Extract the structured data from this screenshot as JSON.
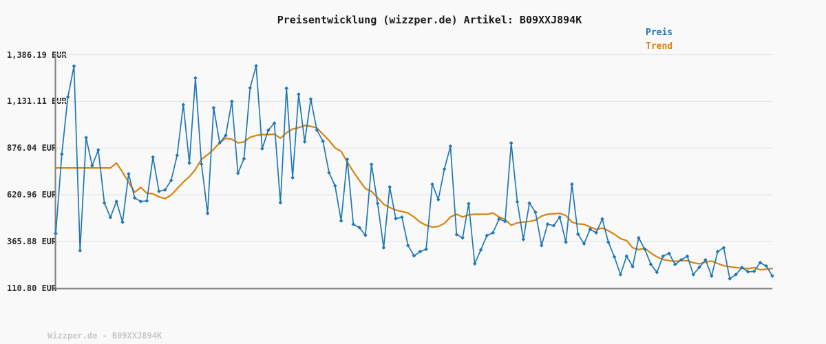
{
  "title": "Preisentwicklung (wizzper.de) Artikel: B09XXJ894K",
  "footer": "Wizzper.de - B09XXJ894K",
  "legend": {
    "preis_label": "Preis",
    "trend_label": "Trend"
  },
  "colors": {
    "price": "#1f77b4",
    "trend": "#d9820f",
    "grid": "#e6e6e6",
    "axis": "#808080",
    "title_text": "#1a1a1a",
    "tick_text": "#2b2b2b",
    "footer_text": "#c9c9c9",
    "background": "#f9f9f9"
  },
  "chart_data": {
    "type": "line",
    "title": "Preisentwicklung (wizzper.de) Artikel: B09XXJ894K",
    "xlabel": "",
    "ylabel": "EUR",
    "ylim": [
      110.8,
      1386.19
    ],
    "grid": "horizontal",
    "legend_position": "top-right",
    "y_ticks": [
      {
        "label": "1,386.19 EUR",
        "value": 1386.19
      },
      {
        "label": "1,131.11 EUR",
        "value": 1131.11
      },
      {
        "label": "876.04 EUR",
        "value": 876.04
      },
      {
        "label": "620.96 EUR",
        "value": 620.96
      },
      {
        "label": "365.88 EUR",
        "value": 365.88
      },
      {
        "label": "110.80 EUR",
        "value": 110.8
      }
    ],
    "series": [
      {
        "name": "Preis",
        "color": "#1f77b4",
        "marker": "diamond",
        "values": [
          410,
          843,
          1155,
          1324,
          317,
          933,
          780,
          866,
          577,
          498,
          585,
          472,
          735,
          604,
          585,
          588,
          827,
          640,
          648,
          700,
          837,
          1113,
          795,
          1259,
          789,
          520,
          1096,
          905,
          946,
          1131,
          739,
          818,
          1205,
          1325,
          873,
          974,
          1012,
          578,
          1203,
          715,
          1170,
          911,
          1144,
          975,
          914,
          742,
          670,
          479,
          815,
          460,
          442,
          400,
          787,
          574,
          332,
          664,
          491,
          499,
          345,
          288,
          311,
          324,
          679,
          595,
          762,
          886,
          404,
          386,
          573,
          245,
          320,
          399,
          414,
          489,
          476,
          904,
          583,
          378,
          576,
          526,
          345,
          461,
          453,
          499,
          363,
          679,
          407,
          354,
          433,
          414,
          489,
          363,
          282,
          186,
          286,
          229,
          386,
          324,
          241,
          198,
          286,
          301,
          241,
          266,
          286,
          186,
          226,
          266,
          178,
          311,
          332,
          163,
          186,
          224,
          201,
          203,
          251,
          232,
          178
        ]
      },
      {
        "name": "Trend",
        "color": "#d9820f",
        "marker": "none",
        "values": [
          768,
          768,
          768,
          768,
          768,
          768,
          768,
          768,
          768,
          768,
          795,
          745,
          690,
          635,
          662,
          630,
          627,
          610,
          600,
          620,
          655,
          690,
          720,
          760,
          815,
          840,
          870,
          905,
          930,
          925,
          905,
          910,
          935,
          945,
          950,
          950,
          952,
          930,
          960,
          980,
          988,
          1000,
          995,
          986,
          952,
          918,
          877,
          858,
          800,
          748,
          700,
          655,
          640,
          605,
          570,
          552,
          538,
          530,
          522,
          500,
          472,
          455,
          445,
          448,
          465,
          500,
          515,
          500,
          512,
          515,
          515,
          515,
          522,
          500,
          486,
          455,
          468,
          472,
          476,
          483,
          505,
          515,
          518,
          520,
          508,
          472,
          462,
          460,
          445,
          432,
          440,
          425,
          406,
          382,
          371,
          332,
          322,
          330,
          303,
          282,
          268,
          262,
          258,
          262,
          262,
          250,
          244,
          253,
          260,
          246,
          234,
          228,
          224,
          221,
          218,
          224,
          212,
          215,
          219
        ]
      }
    ]
  }
}
